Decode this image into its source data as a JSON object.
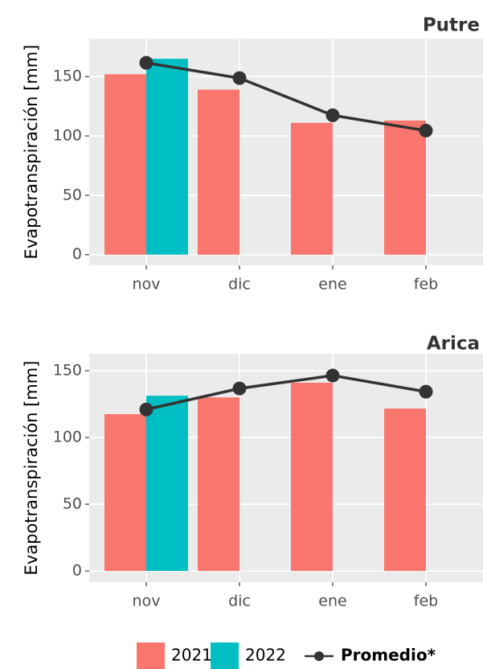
{
  "chart_data": [
    {
      "type": "bar",
      "title": "Putre",
      "y_label": "Evapotranspiración [mm]",
      "categories": [
        "nov",
        "dic",
        "ene",
        "feb"
      ],
      "series": [
        {
          "name": "2021",
          "color": "#F8766D",
          "values": [
            152,
            139,
            111,
            113
          ]
        },
        {
          "name": "2022",
          "color": "#00BFC4",
          "values": [
            165,
            null,
            null,
            null
          ]
        },
        {
          "name": "Promedio*",
          "type": "line",
          "color": "#333333",
          "values": [
            161.6,
            148.7,
            117.4,
            104.5
          ]
        }
      ],
      "ylim": [
        -9,
        182
      ],
      "yticks": [
        0,
        50,
        100,
        150
      ],
      "grid": true,
      "legend": "bottom"
    },
    {
      "type": "bar",
      "title": "Arica",
      "y_label": "Evapotranspiración [mm]",
      "categories": [
        "nov",
        "dic",
        "ene",
        "feb"
      ],
      "series": [
        {
          "name": "2021",
          "color": "#F8766D",
          "values": [
            117.5,
            130,
            141,
            121.7
          ]
        },
        {
          "name": "2022",
          "color": "#00BFC4",
          "values": [
            131.3,
            null,
            null,
            null
          ]
        },
        {
          "name": "Promedio*",
          "type": "line",
          "color": "#333333",
          "values": [
            121,
            136.7,
            146.4,
            134.3
          ]
        }
      ],
      "ylim": [
        -8.4,
        162.7
      ],
      "yticks": [
        0,
        50,
        100,
        150
      ],
      "grid": true,
      "legend": "bottom"
    }
  ]
}
